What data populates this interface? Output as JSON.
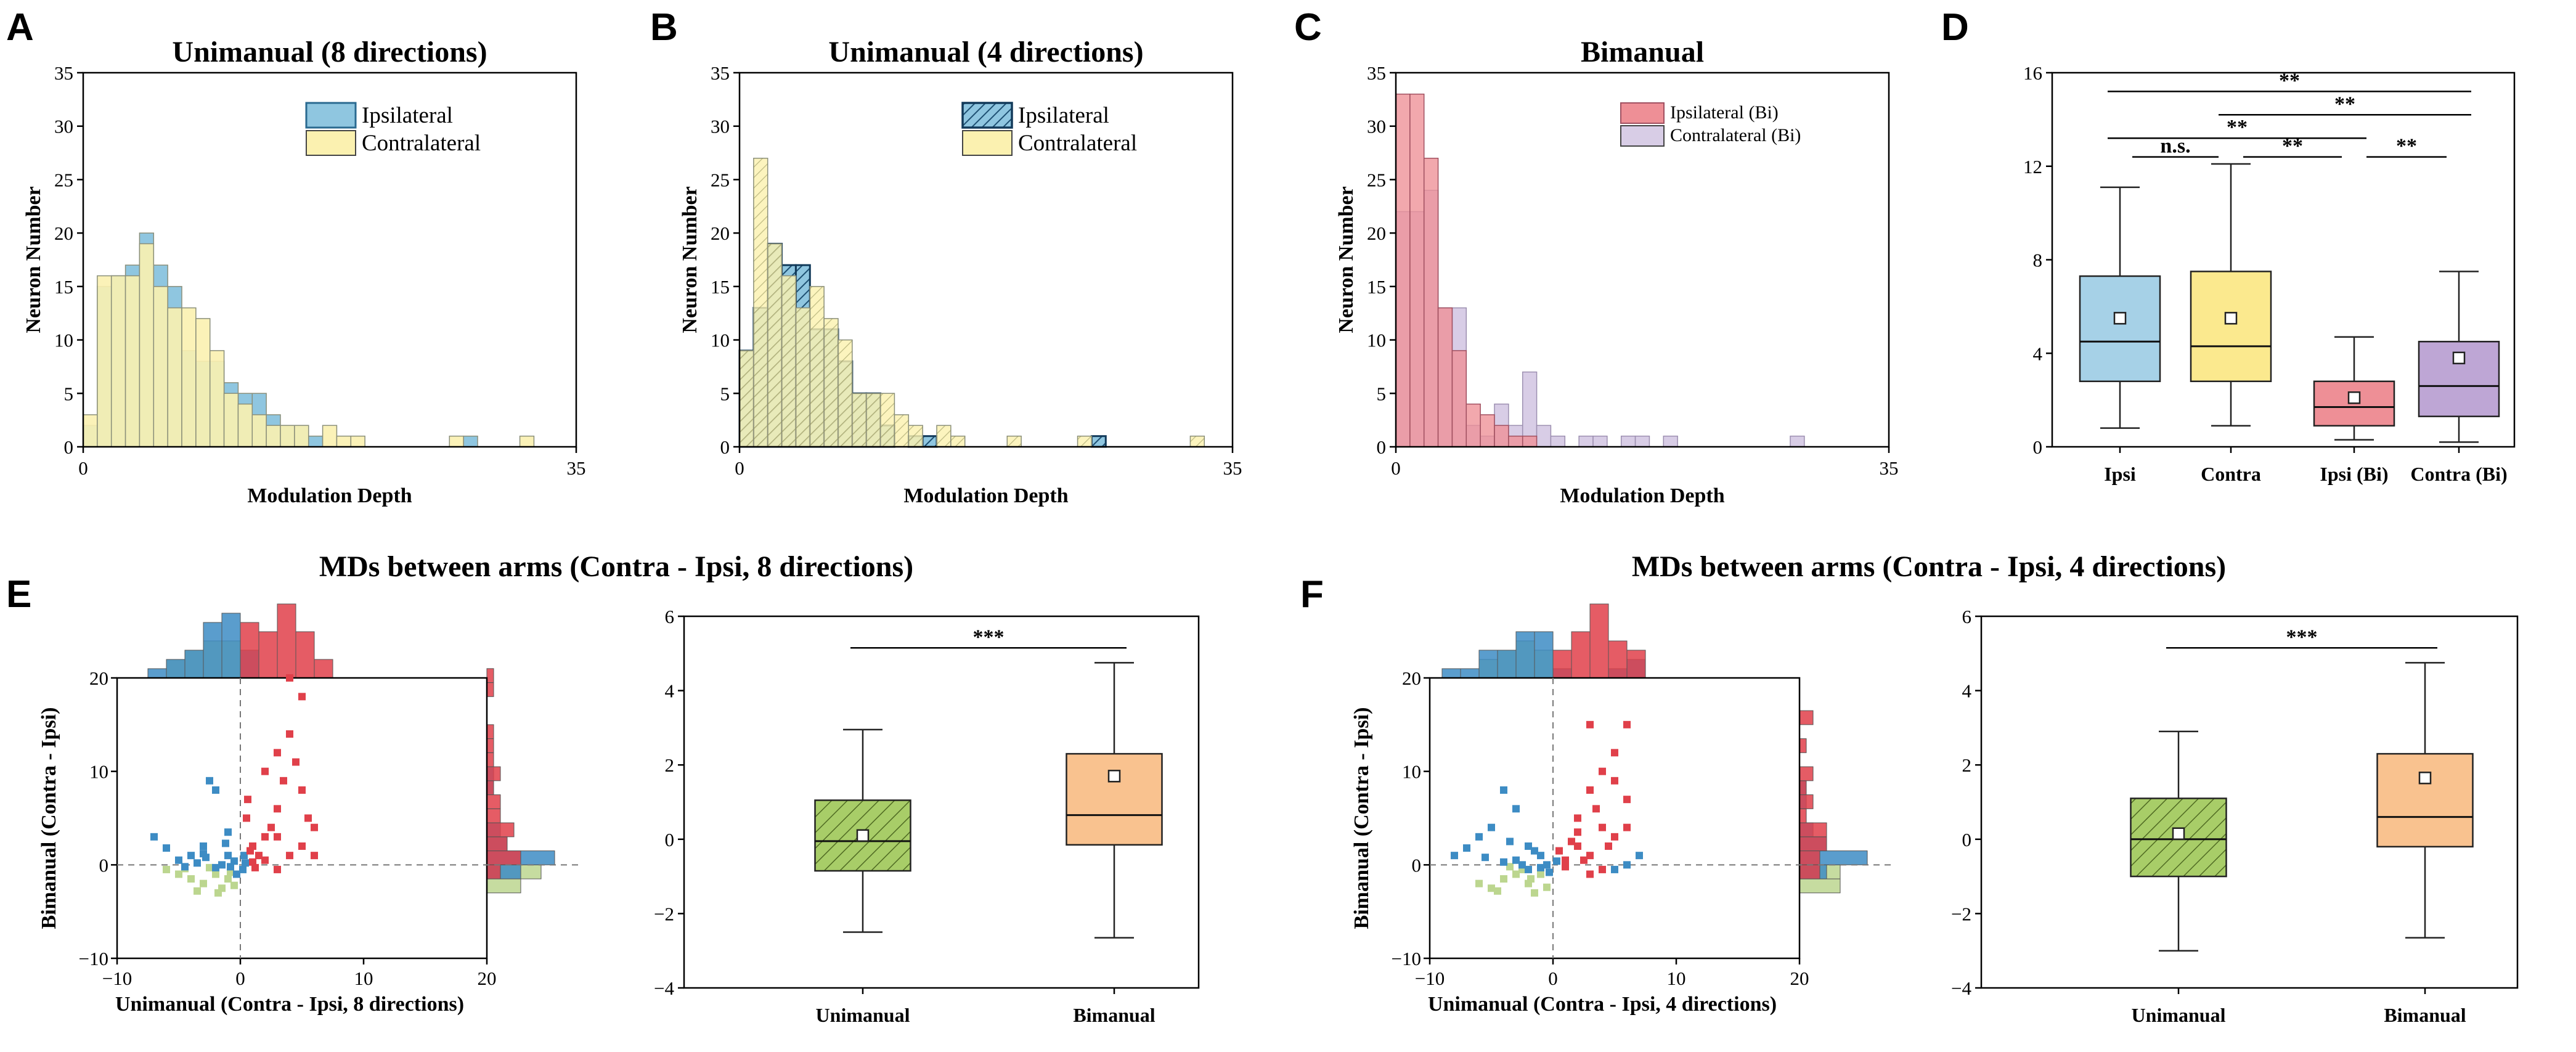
{
  "panel_labels": [
    "A",
    "B",
    "C",
    "D",
    "E",
    "F"
  ],
  "chart_data": [
    {
      "id": "A",
      "type": "bar",
      "subtype": "overlaid-histogram",
      "title": "Unimanual (8 directions)",
      "xlabel": "Modulation Depth",
      "ylabel": "Neuron Number",
      "xlim": [
        0,
        35
      ],
      "ylim": [
        0,
        35
      ],
      "xticks": [
        "0",
        "35"
      ],
      "yticks": [
        "0",
        "5",
        "10",
        "15",
        "20",
        "25",
        "30",
        "35"
      ],
      "bin_width": 1,
      "series": [
        {
          "name": "Ipsilateral",
          "color": "#8fc6e0",
          "values": [
            2,
            15,
            16,
            17,
            20,
            17,
            15,
            9,
            8,
            8,
            6,
            5,
            5,
            3,
            2,
            2,
            1,
            0,
            0,
            0,
            0,
            0,
            0,
            0,
            0,
            0,
            0,
            1,
            0,
            0,
            0,
            0,
            0,
            0,
            0
          ]
        },
        {
          "name": "Contralateral",
          "color": "#fbf1b0",
          "values": [
            3,
            16,
            16,
            16,
            19,
            15,
            13,
            13,
            12,
            9,
            5,
            4,
            3,
            2,
            2,
            2,
            0,
            2,
            1,
            1,
            0,
            0,
            0,
            0,
            0,
            0,
            1,
            0,
            0,
            0,
            0,
            1,
            0,
            0,
            0
          ]
        }
      ],
      "legend_position": "top-right"
    },
    {
      "id": "B",
      "type": "bar",
      "subtype": "overlaid-histogram",
      "title": "Unimanual (4 directions)",
      "xlabel": "Modulation Depth",
      "ylabel": "Neuron Number",
      "xlim": [
        0,
        35
      ],
      "ylim": [
        0,
        35
      ],
      "xticks": [
        "0",
        "35"
      ],
      "yticks": [
        "0",
        "5",
        "10",
        "15",
        "20",
        "25",
        "30",
        "35"
      ],
      "bin_width": 1,
      "series": [
        {
          "name": "Ipsilateral",
          "color": "#8fc6e0",
          "hatched": true,
          "values": [
            9,
            13,
            19,
            17,
            17,
            11,
            11,
            8,
            5,
            5,
            2,
            0,
            1,
            1,
            0,
            0,
            0,
            0,
            0,
            0,
            0,
            0,
            0,
            0,
            0,
            1,
            0,
            0,
            0,
            0,
            0,
            0,
            0,
            0,
            0
          ]
        },
        {
          "name": "Contralateral",
          "color": "#fbf1b0",
          "values": [
            9,
            27,
            19,
            16,
            13,
            15,
            12,
            10,
            5,
            5,
            5,
            3,
            2,
            0,
            2,
            1,
            0,
            0,
            0,
            1,
            0,
            0,
            0,
            0,
            1,
            0,
            0,
            0,
            0,
            0,
            0,
            0,
            1,
            0,
            0
          ]
        }
      ],
      "legend_position": "top-right"
    },
    {
      "id": "C",
      "type": "bar",
      "subtype": "overlaid-histogram",
      "title": "Bimanual",
      "xlabel": "Modulation Depth",
      "ylabel": "Neuron Number",
      "xlim": [
        0,
        35
      ],
      "ylim": [
        0,
        35
      ],
      "xticks": [
        "0",
        "35"
      ],
      "yticks": [
        "0",
        "5",
        "10",
        "15",
        "20",
        "25",
        "30",
        "35"
      ],
      "bin_width": 1,
      "series": [
        {
          "name": "Ipsilateral (Bi)",
          "color": "#ee8f96",
          "values": [
            33,
            33,
            27,
            13,
            9,
            4,
            3,
            2,
            1,
            1,
            0,
            0,
            0,
            0,
            0,
            0,
            0,
            0,
            0,
            0,
            0,
            0,
            0,
            0,
            0,
            0,
            0,
            0,
            0,
            0,
            0,
            0,
            0,
            0,
            0
          ]
        },
        {
          "name": "Contralateral (Bi)",
          "color": "#d8cde6",
          "values": [
            22,
            22,
            24,
            13,
            13,
            2,
            1,
            4,
            2,
            7,
            2,
            1,
            0,
            1,
            1,
            0,
            1,
            1,
            0,
            1,
            0,
            0,
            0,
            0,
            0,
            0,
            0,
            0,
            1,
            0,
            0,
            0,
            0,
            0,
            0
          ]
        }
      ],
      "legend_position": "top-right"
    },
    {
      "id": "D",
      "type": "box",
      "ylim": [
        0,
        16
      ],
      "yticks": [
        "0",
        "4",
        "8",
        "12",
        "16"
      ],
      "categories": [
        "Ipsi",
        "Contra",
        "Ipsi (Bi)",
        "Contra (Bi)"
      ],
      "boxes": [
        {
          "label": "Ipsi",
          "color": "#a6d1e7",
          "whisker_low": 0.8,
          "q1": 2.8,
          "median": 4.5,
          "q3": 7.3,
          "whisker_high": 11.1,
          "mean": 5.5
        },
        {
          "label": "Contra",
          "color": "#fbe98e",
          "whisker_low": 0.9,
          "q1": 2.8,
          "median": 4.3,
          "q3": 7.5,
          "whisker_high": 12.1,
          "mean": 5.5
        },
        {
          "label": "Ipsi (Bi)",
          "color": "#ee8f96",
          "whisker_low": 0.3,
          "q1": 0.9,
          "median": 1.7,
          "q3": 2.8,
          "whisker_high": 4.7,
          "mean": 2.1
        },
        {
          "label": "Contra (Bi)",
          "color": "#bea6d5",
          "whisker_low": 0.2,
          "q1": 1.3,
          "median": 2.6,
          "q3": 4.5,
          "whisker_high": 7.5,
          "mean": 3.8
        }
      ],
      "significance": [
        {
          "from": 0,
          "to": 3,
          "y": 15.2,
          "label": "**"
        },
        {
          "from": 1,
          "to": 3,
          "y": 14.2,
          "label": "**"
        },
        {
          "from": 0,
          "to": 2,
          "y": 13.2,
          "label": "**"
        },
        {
          "from": 0,
          "to": 1,
          "y": 12.4,
          "label": "n.s."
        },
        {
          "from": 1,
          "to": 2,
          "y": 12.4,
          "label": "**"
        },
        {
          "from": 2,
          "to": 3,
          "y": 12.4,
          "label": "**"
        }
      ]
    },
    {
      "id": "E-scatter",
      "type": "scatter",
      "title": "MDs between arms (Contra - Ipsi, 8 directions)",
      "xlabel": "Unimanual (Contra - Ipsi, 8 directions)",
      "ylabel": "Bimanual (Contra - Ipsi)",
      "xlim": [
        -10,
        20
      ],
      "ylim": [
        -10,
        20
      ],
      "xticks": [
        "−10",
        "0",
        "10",
        "20"
      ],
      "yticks": [
        "−10",
        "0",
        "10",
        "20"
      ],
      "marginal_histograms": true,
      "series": [
        {
          "name": "green",
          "color": "#bcd68f",
          "points": [
            [
              -6,
              -0.5
            ],
            [
              -5,
              -1
            ],
            [
              -4,
              -1.5
            ],
            [
              -3,
              -2
            ],
            [
              -2,
              -1
            ],
            [
              -1.5,
              -2.5
            ],
            [
              -1,
              -1.5
            ],
            [
              -2.5,
              -0.3
            ],
            [
              -0.5,
              -2.2
            ],
            [
              -3.5,
              -2.8
            ],
            [
              -4.5,
              -0.4
            ],
            [
              -1.8,
              -3
            ],
            [
              -0.8,
              -0.8
            ]
          ]
        },
        {
          "name": "blue",
          "color": "#3d8cc4",
          "points": [
            [
              -2,
              8
            ],
            [
              -2.5,
              9
            ],
            [
              -3,
              2
            ],
            [
              -1,
              1
            ],
            [
              -5,
              0.5
            ],
            [
              -7,
              3
            ],
            [
              -4,
              1
            ],
            [
              -1.5,
              0
            ],
            [
              -0.5,
              0.4
            ],
            [
              -2,
              -0.3
            ],
            [
              -3,
              1.2
            ],
            [
              -6,
              1.8
            ],
            [
              -0.3,
              -1
            ],
            [
              -1.2,
              2.3
            ],
            [
              0.2,
              -0.5
            ],
            [
              -4.5,
              -0.2
            ],
            [
              -2.8,
              0.8
            ],
            [
              -1,
              3.5
            ],
            [
              0.4,
              0.2
            ],
            [
              -3.5,
              0.2
            ],
            [
              -0.8,
              -0.2
            ],
            [
              0.3,
              1
            ]
          ]
        },
        {
          "name": "red",
          "color": "#e0404a",
          "points": [
            [
              4,
              20
            ],
            [
              5,
              18
            ],
            [
              3,
              12
            ],
            [
              2,
              10
            ],
            [
              4,
              14
            ],
            [
              5,
              8
            ],
            [
              3,
              6
            ],
            [
              6,
              4
            ],
            [
              2,
              3
            ],
            [
              1,
              2
            ],
            [
              4,
              1
            ],
            [
              5,
              2
            ],
            [
              3,
              -0.5
            ],
            [
              0.5,
              5
            ],
            [
              1.5,
              1
            ],
            [
              2,
              0.5
            ],
            [
              3.5,
              9
            ],
            [
              4.5,
              11
            ],
            [
              1,
              0.3
            ],
            [
              2.5,
              4
            ],
            [
              0.8,
              1.5
            ],
            [
              6,
              1
            ],
            [
              3,
              3
            ],
            [
              1.2,
              -0.3
            ],
            [
              5.5,
              5
            ],
            [
              0.6,
              7
            ]
          ]
        }
      ]
    },
    {
      "id": "E-box",
      "type": "box",
      "ylim": [
        -4,
        6
      ],
      "yticks": [
        "−4",
        "−2",
        "0",
        "2",
        "4",
        "6"
      ],
      "categories": [
        "Unimanual",
        "Bimanual"
      ],
      "boxes": [
        {
          "label": "Unimanual",
          "color": "#a8cd68",
          "hatched": true,
          "whisker_low": -2.5,
          "q1": -0.85,
          "median": -0.05,
          "q3": 1.05,
          "whisker_high": 2.95,
          "mean": 0.1
        },
        {
          "label": "Bimanual",
          "color": "#f9c28f",
          "whisker_low": -2.65,
          "q1": -0.15,
          "median": 0.65,
          "q3": 2.3,
          "whisker_high": 4.75,
          "mean": 1.7
        }
      ],
      "significance": [
        {
          "from": 0,
          "to": 1,
          "y": 5.15,
          "label": "***"
        }
      ]
    },
    {
      "id": "F-scatter",
      "type": "scatter",
      "title": "MDs between arms (Contra - Ipsi, 4 directions)",
      "xlabel": "Unimanual (Contra - Ipsi, 4 directions)",
      "ylabel": "Bimanual (Contra - Ipsi)",
      "xlim": [
        -10,
        20
      ],
      "ylim": [
        -10,
        20
      ],
      "xticks": [
        "−10",
        "0",
        "10",
        "20"
      ],
      "yticks": [
        "−10",
        "0",
        "10",
        "20"
      ],
      "marginal_histograms": true,
      "series": [
        {
          "name": "green",
          "color": "#bcd68f",
          "points": [
            [
              -6,
              -2
            ],
            [
              -5,
              -2.5
            ],
            [
              -4,
              -1.5
            ],
            [
              -3,
              -1
            ],
            [
              -2,
              -2
            ],
            [
              -1.5,
              -3
            ],
            [
              -1,
              -1
            ],
            [
              -2.5,
              -0.5
            ],
            [
              -4.5,
              -2.8
            ],
            [
              -3.5,
              -0.2
            ],
            [
              -0.5,
              -2.4
            ],
            [
              -1.8,
              -1.5
            ]
          ]
        },
        {
          "name": "blue",
          "color": "#3d8cc4",
          "points": [
            [
              -4,
              8
            ],
            [
              -3,
              6
            ],
            [
              -5,
              4
            ],
            [
              -8,
              1
            ],
            [
              -6,
              3
            ],
            [
              -2,
              2
            ],
            [
              -1,
              1
            ],
            [
              -3,
              0.5
            ],
            [
              -0.5,
              0
            ],
            [
              -2,
              -0.5
            ],
            [
              -4,
              0.3
            ],
            [
              -7,
              1.8
            ],
            [
              -1.5,
              1.5
            ],
            [
              -0.3,
              -0.8
            ],
            [
              -2.5,
              0
            ],
            [
              -5.5,
              0.8
            ],
            [
              0.3,
              0.4
            ],
            [
              -1,
              -0.3
            ],
            [
              6,
              0
            ],
            [
              7,
              1
            ],
            [
              5,
              -0.5
            ],
            [
              -3.5,
              2.5
            ]
          ]
        },
        {
          "name": "red",
          "color": "#e0404a",
          "points": [
            [
              3,
              15
            ],
            [
              6,
              15
            ],
            [
              5,
              12
            ],
            [
              4,
              10
            ],
            [
              3,
              8
            ],
            [
              6,
              7
            ],
            [
              2,
              5
            ],
            [
              4,
              4
            ],
            [
              5,
              3
            ],
            [
              2,
              2
            ],
            [
              3,
              1
            ],
            [
              1,
              0.5
            ],
            [
              4,
              -0.5
            ],
            [
              3,
              -1
            ],
            [
              6,
              4
            ],
            [
              1.5,
              2.5
            ],
            [
              2.5,
              0.5
            ],
            [
              0.5,
              1.5
            ],
            [
              3.5,
              6
            ],
            [
              5,
              9
            ],
            [
              1,
              -0.2
            ],
            [
              4.5,
              2
            ],
            [
              2,
              3.5
            ]
          ]
        }
      ]
    },
    {
      "id": "F-box",
      "type": "box",
      "ylim": [
        -4,
        6
      ],
      "yticks": [
        "−4",
        "−2",
        "0",
        "2",
        "4",
        "6"
      ],
      "categories": [
        "Unimanual",
        "Bimanual"
      ],
      "boxes": [
        {
          "label": "Unimanual",
          "color": "#a8cd68",
          "hatched": true,
          "whisker_low": -3.0,
          "q1": -1.0,
          "median": 0.0,
          "q3": 1.1,
          "whisker_high": 2.9,
          "mean": 0.15
        },
        {
          "label": "Bimanual",
          "color": "#f9c28f",
          "whisker_low": -2.65,
          "q1": -0.2,
          "median": 0.6,
          "q3": 2.3,
          "whisker_high": 4.75,
          "mean": 1.65
        }
      ],
      "significance": [
        {
          "from": 0,
          "to": 1,
          "y": 5.15,
          "label": "***"
        }
      ]
    }
  ]
}
